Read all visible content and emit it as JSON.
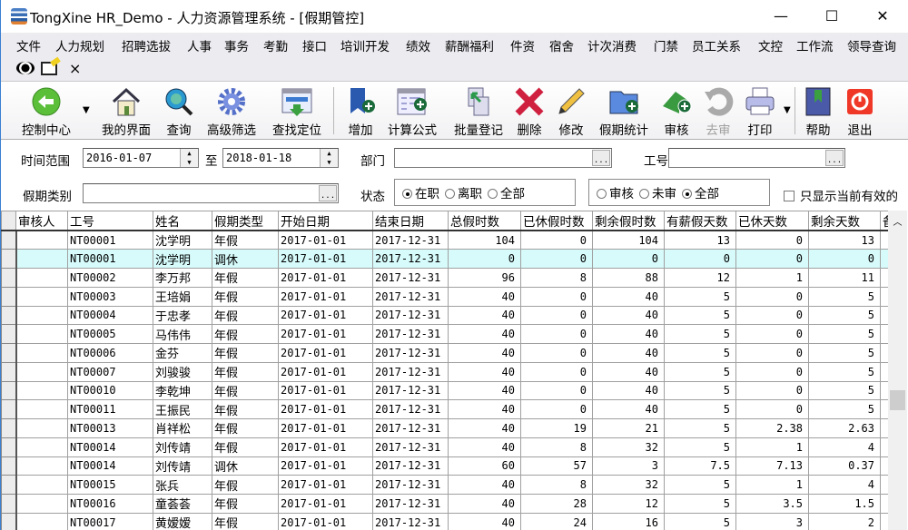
{
  "window": {
    "title": "TongXine HR_Demo - 人力资源管理系统 - [假期管控]",
    "minimize": "—",
    "maximize": "☐",
    "close": "✕"
  },
  "menu": [
    "文件",
    "人力规划",
    "招聘选拔",
    "人事",
    "事务",
    "考勤",
    "接口",
    "培训开发",
    "绩效",
    "薪酬福利",
    "件资",
    "宿舍",
    "计次消费",
    "门禁",
    "员工关系",
    "文控",
    "工作流",
    "领导查询"
  ],
  "quickbar": {
    "close": "×"
  },
  "toolbar": [
    {
      "label": "控制中心",
      "icon": "back-arrow-icon"
    },
    {
      "label": "我的界面",
      "icon": "home-icon"
    },
    {
      "label": "查询",
      "icon": "search-globe-icon"
    },
    {
      "label": "高级筛选",
      "icon": "gear-icon"
    },
    {
      "label": "查找定位",
      "icon": "locate-window-icon"
    },
    {
      "label": "增加",
      "icon": "add-bookmark-icon"
    },
    {
      "label": "计算公式",
      "icon": "formula-icon"
    },
    {
      "label": "批量登记",
      "icon": "batch-register-icon"
    },
    {
      "label": "删除",
      "icon": "delete-x-icon"
    },
    {
      "label": "修改",
      "icon": "pencil-icon"
    },
    {
      "label": "假期统计",
      "icon": "folder-add-icon"
    },
    {
      "label": "审核",
      "icon": "approve-icon"
    },
    {
      "label": "去审",
      "icon": "undo-icon",
      "disabled": true
    },
    {
      "label": "打印",
      "icon": "printer-icon"
    },
    {
      "label": "帮助",
      "icon": "help-book-icon"
    },
    {
      "label": "退出",
      "icon": "power-icon"
    }
  ],
  "filters": {
    "time_range_label": "时间范围",
    "date_from": "2016-01-07",
    "to_label": "至",
    "date_to": "2018-01-18",
    "dept_label": "部门",
    "dept_value": "",
    "emp_no_label": "工号",
    "emp_no_value": "",
    "leave_type_label": "假期类别",
    "leave_type_value": "",
    "status_label": "状态",
    "status_options": [
      "在职",
      "离职",
      "全部"
    ],
    "status_selected": "在职",
    "audit_options": [
      "审核",
      "未审",
      "全部"
    ],
    "audit_selected": "全部",
    "only_current_label": "只显示当前有效的",
    "only_current_checked": false
  },
  "grid": {
    "columns": [
      "审核人",
      "工号",
      "姓名",
      "假期类型",
      "开始日期",
      "结束日期",
      "总假时数",
      "已休假时数",
      "剩余假时数",
      "有薪假天数",
      "已休天数",
      "剩余天数",
      "备"
    ],
    "selected_row": 1,
    "rows": [
      [
        "",
        "NT00001",
        "沈学明",
        "年假",
        "2017-01-01",
        "2017-12-31",
        "104",
        "0",
        "104",
        "13",
        "0",
        "13"
      ],
      [
        "",
        "NT00001",
        "沈学明",
        "调休",
        "2017-01-01",
        "2017-12-31",
        "0",
        "0",
        "0",
        "0",
        "0",
        "0"
      ],
      [
        "",
        "NT00002",
        "李万邦",
        "年假",
        "2017-01-01",
        "2017-12-31",
        "96",
        "8",
        "88",
        "12",
        "1",
        "11"
      ],
      [
        "",
        "NT00003",
        "王培娟",
        "年假",
        "2017-01-01",
        "2017-12-31",
        "40",
        "0",
        "40",
        "5",
        "0",
        "5"
      ],
      [
        "",
        "NT00004",
        "于忠孝",
        "年假",
        "2017-01-01",
        "2017-12-31",
        "40",
        "0",
        "40",
        "5",
        "0",
        "5"
      ],
      [
        "",
        "NT00005",
        "马伟伟",
        "年假",
        "2017-01-01",
        "2017-12-31",
        "40",
        "0",
        "40",
        "5",
        "0",
        "5"
      ],
      [
        "",
        "NT00006",
        "金芬",
        "年假",
        "2017-01-01",
        "2017-12-31",
        "40",
        "0",
        "40",
        "5",
        "0",
        "5"
      ],
      [
        "",
        "NT00007",
        "刘骏骏",
        "年假",
        "2017-01-01",
        "2017-12-31",
        "40",
        "0",
        "40",
        "5",
        "0",
        "5"
      ],
      [
        "",
        "NT00010",
        "李乾坤",
        "年假",
        "2017-01-01",
        "2017-12-31",
        "40",
        "0",
        "40",
        "5",
        "0",
        "5"
      ],
      [
        "",
        "NT00011",
        "王振民",
        "年假",
        "2017-01-01",
        "2017-12-31",
        "40",
        "0",
        "40",
        "5",
        "0",
        "5"
      ],
      [
        "",
        "NT00013",
        "肖祥松",
        "年假",
        "2017-01-01",
        "2017-12-31",
        "40",
        "19",
        "21",
        "5",
        "2.38",
        "2.63"
      ],
      [
        "",
        "NT00014",
        "刘传靖",
        "年假",
        "2017-01-01",
        "2017-12-31",
        "40",
        "8",
        "32",
        "5",
        "1",
        "4"
      ],
      [
        "",
        "NT00014",
        "刘传靖",
        "调休",
        "2017-01-01",
        "2017-12-31",
        "60",
        "57",
        "3",
        "7.5",
        "7.13",
        "0.37"
      ],
      [
        "",
        "NT00015",
        "张兵",
        "年假",
        "2017-01-01",
        "2017-12-31",
        "40",
        "8",
        "32",
        "5",
        "1",
        "4"
      ],
      [
        "",
        "NT00016",
        "童荟荟",
        "年假",
        "2017-01-01",
        "2017-12-31",
        "40",
        "28",
        "12",
        "5",
        "3.5",
        "1.5"
      ],
      [
        "",
        "NT00017",
        "黄嫒嫒",
        "年假",
        "2017-01-01",
        "2017-12-31",
        "40",
        "24",
        "16",
        "5",
        "3",
        "2"
      ]
    ]
  },
  "colors": {
    "selected_row": "#d7fbfb",
    "toolbar_bg": "#ecebf0"
  }
}
